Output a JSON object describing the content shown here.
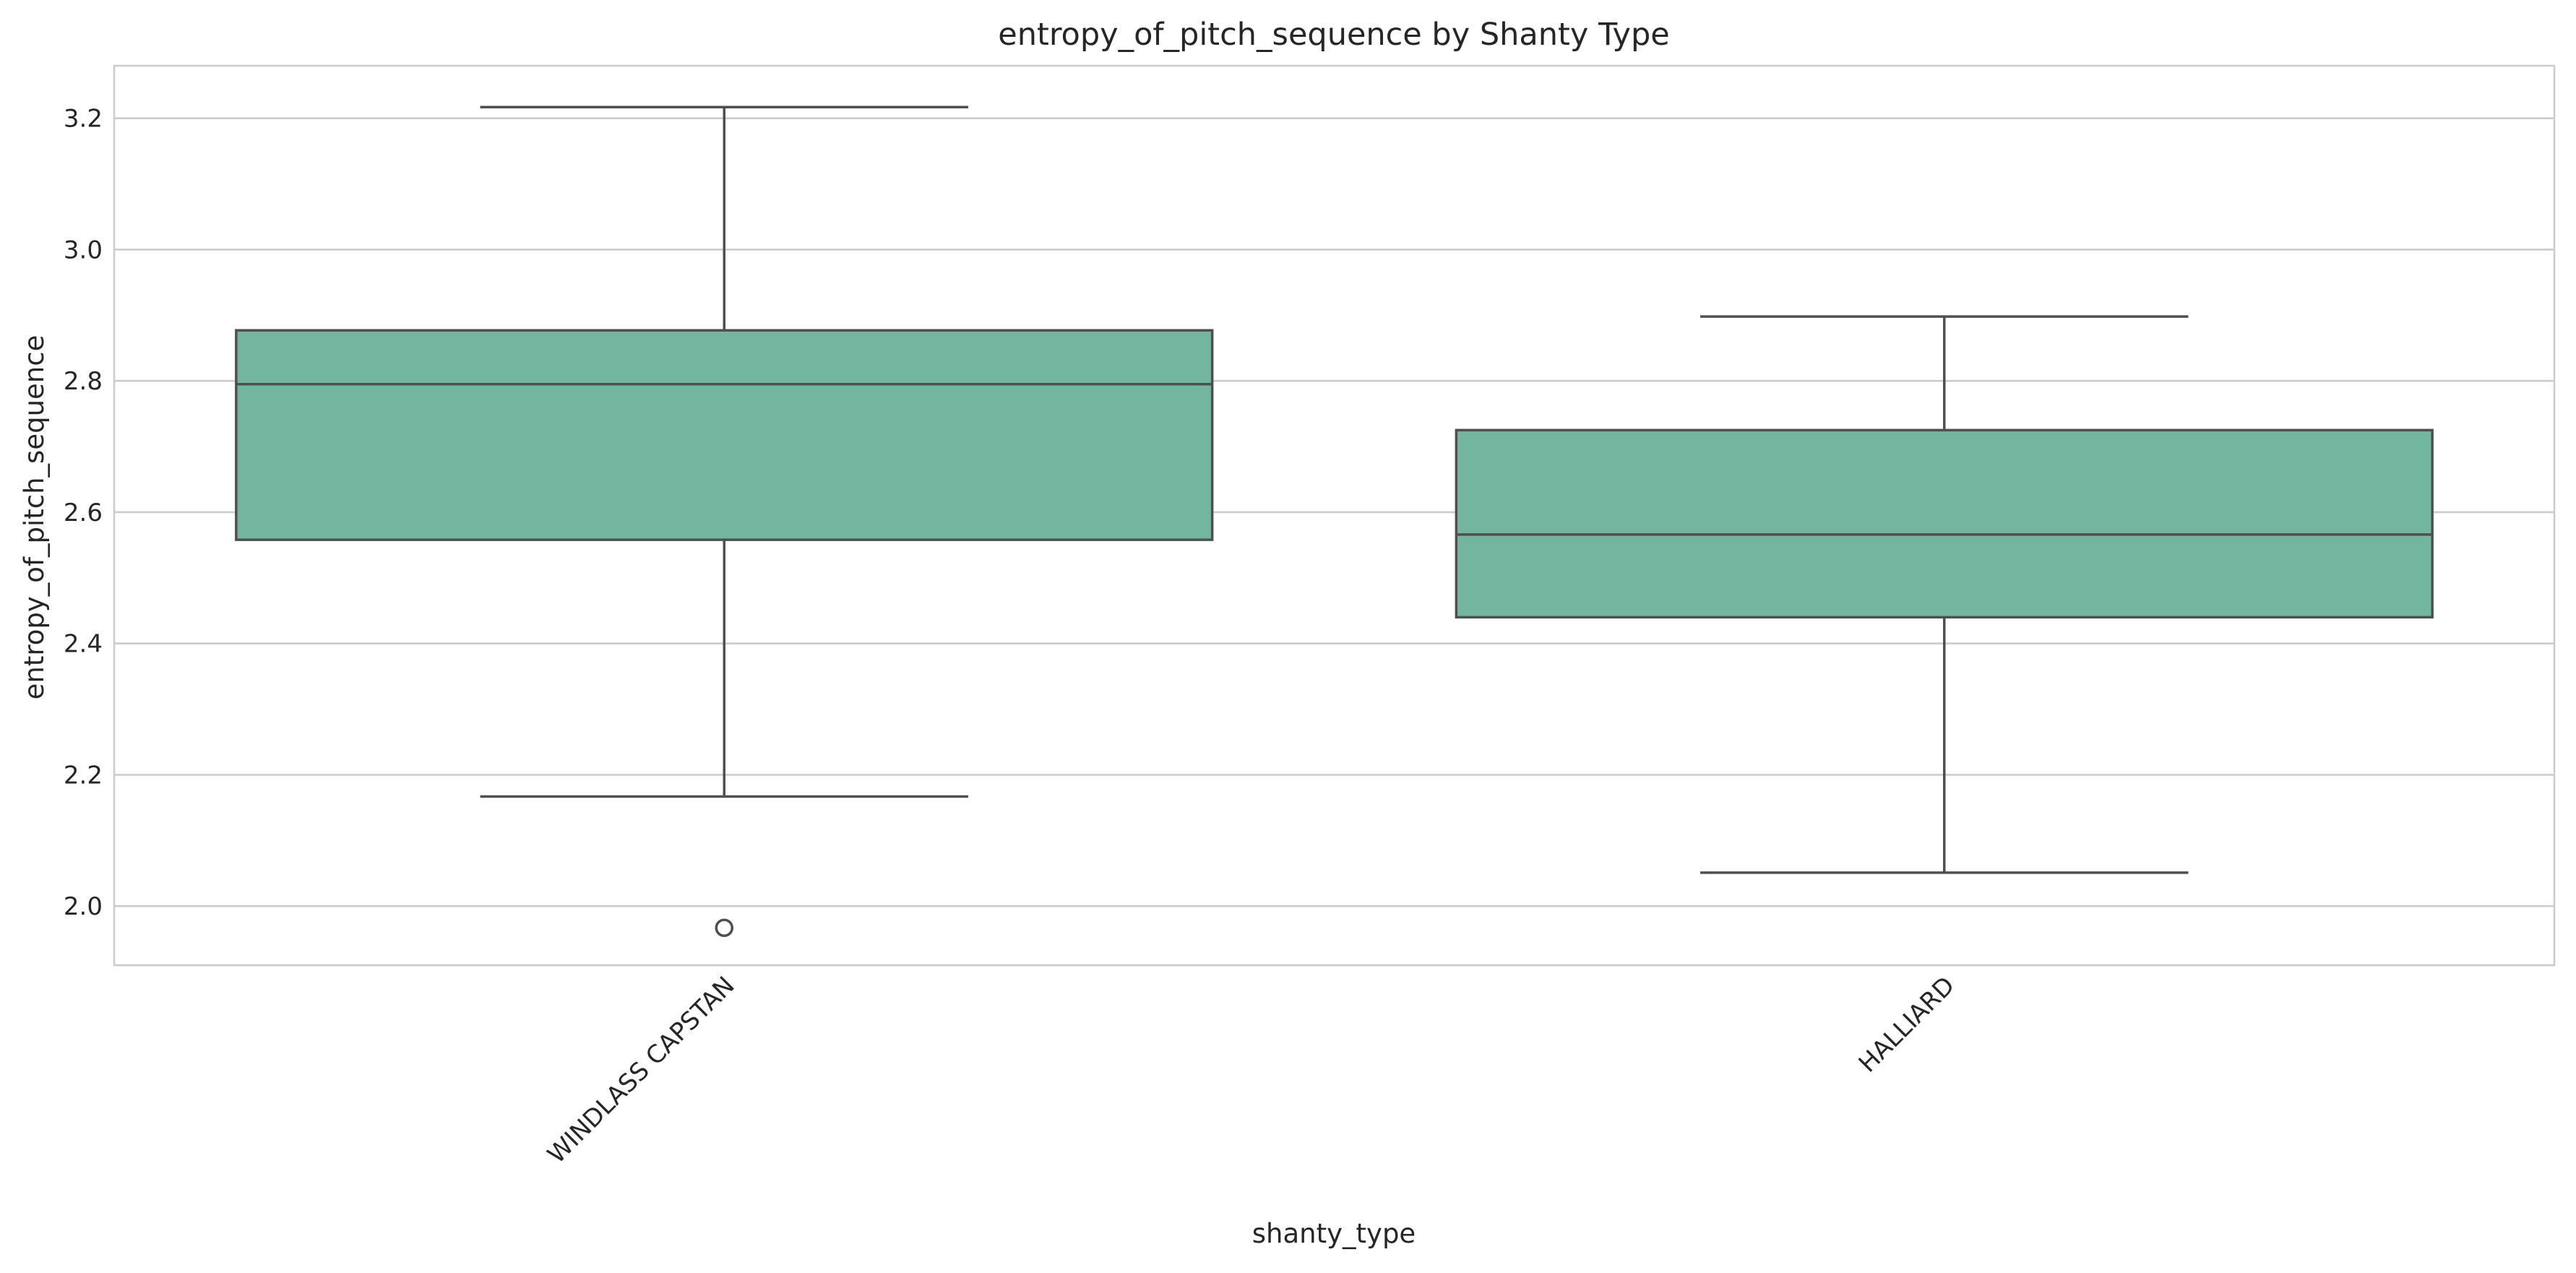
{
  "chart_data": {
    "type": "box",
    "title": "entropy_of_pitch_sequence by Shanty Type",
    "xlabel": "shanty_type",
    "ylabel": "entropy_of_pitch_sequence",
    "ylim": [
      1.91,
      3.28
    ],
    "yticks": [
      2.0,
      2.2,
      2.4,
      2.6,
      2.8,
      3.0,
      3.2
    ],
    "ytick_labels": [
      "2.0",
      "2.2",
      "2.4",
      "2.6",
      "2.8",
      "3.0",
      "3.2"
    ],
    "grid": true,
    "x_tick_rotation": "45 degrees",
    "categories": [
      "WINDLASS CAPSTAN",
      "HALLIARD"
    ],
    "boxes": [
      {
        "category": "WINDLASS CAPSTAN",
        "whisker_low": 2.167,
        "q1": 2.558,
        "median": 2.795,
        "q3": 2.877,
        "whisker_high": 3.217,
        "outliers": [
          1.967
        ]
      },
      {
        "category": "HALLIARD",
        "whisker_low": 2.051,
        "q1": 2.44,
        "median": 2.566,
        "q3": 2.725,
        "whisker_high": 2.898,
        "outliers": []
      }
    ],
    "colors": {
      "box_fill": "#73b6a0",
      "line": "#4f4f4f",
      "grid": "#cccccc",
      "frame": "#cccccc"
    }
  }
}
